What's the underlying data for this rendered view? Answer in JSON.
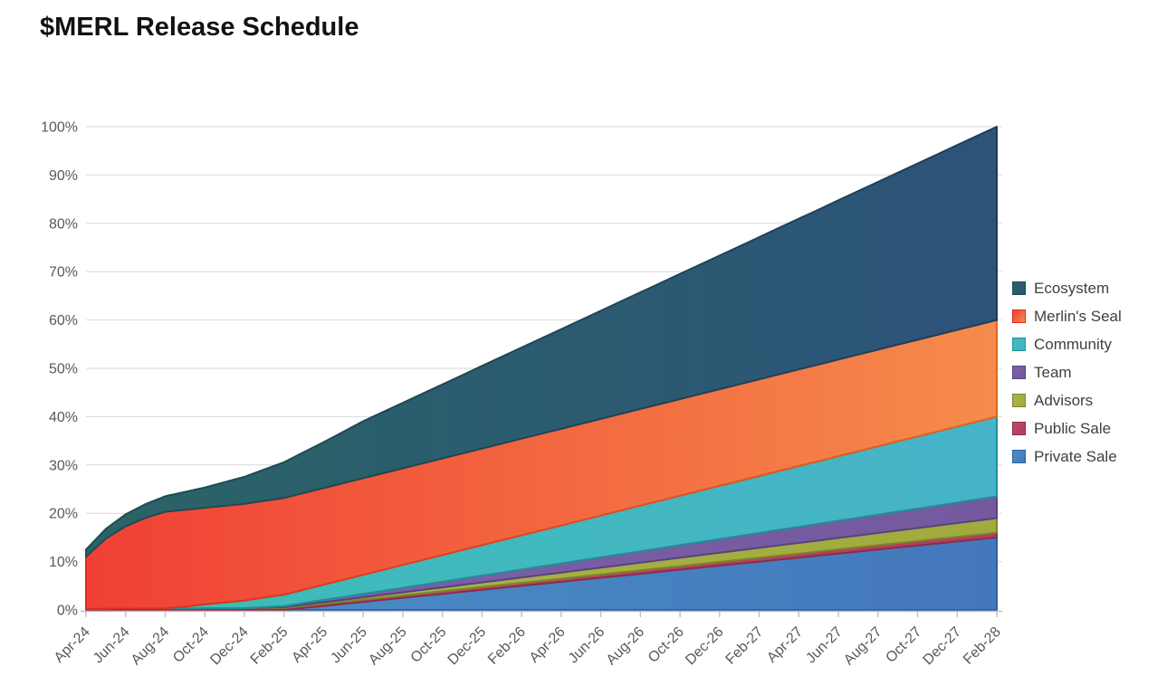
{
  "title": "$MERL Release Schedule",
  "chart_data": {
    "type": "area",
    "stacked": true,
    "unit": "% of total supply unlocked (cumulative)",
    "x_start": "Apr-24",
    "x_end": "Feb-28",
    "x_step_months": 1,
    "x_tick_labels": [
      "Apr-24",
      "Jun-24",
      "Aug-24",
      "Oct-24",
      "Dec-24",
      "Feb-25",
      "Apr-25",
      "Jun-25",
      "Aug-25",
      "Oct-25",
      "Dec-25",
      "Feb-26",
      "Apr-26",
      "Jun-26",
      "Aug-26",
      "Oct-26",
      "Dec-26",
      "Feb-27",
      "Apr-27",
      "Jun-27",
      "Aug-27",
      "Oct-27",
      "Dec-27",
      "Feb-28"
    ],
    "y_ticks": [
      "0%",
      "10%",
      "20%",
      "30%",
      "40%",
      "50%",
      "60%",
      "70%",
      "80%",
      "90%",
      "100%"
    ],
    "ylim": [
      0,
      100
    ],
    "grid": true,
    "grid_color": "#d9d9d9",
    "axis_color": "#bfbfbf",
    "label_color": "#595959",
    "legend_position": "right",
    "legend_order": [
      "Ecosystem",
      "Merlin's Seal",
      "Community",
      "Team",
      "Advisors",
      "Public Sale",
      "Private Sale"
    ],
    "series": [
      {
        "name": "Private Sale",
        "total_allocation_pct": 15,
        "color_left": "#4a90c6",
        "color_right": "#4478bc",
        "stroke_left": "#30609f",
        "stroke_right": "#30609f",
        "values": [
          0,
          0,
          0,
          0,
          0,
          0,
          0,
          0,
          0,
          0,
          0,
          0.42,
          0.83,
          1.25,
          1.67,
          2.08,
          2.5,
          2.92,
          3.33,
          3.75,
          4.17,
          4.58,
          5,
          5.42,
          5.83,
          6.25,
          6.67,
          7.08,
          7.5,
          7.92,
          8.33,
          8.75,
          9.17,
          9.58,
          10,
          10.42,
          10.83,
          11.25,
          11.67,
          12.08,
          12.5,
          12.92,
          13.33,
          13.75,
          14.17,
          14.58,
          15
        ]
      },
      {
        "name": "Public Sale",
        "total_allocation_pct": 1,
        "color_left": "#c2486b",
        "color_right": "#b23d5f",
        "stroke_left": "#8e2c49",
        "stroke_right": "#8e2c49",
        "values": [
          0.25,
          0.27,
          0.28,
          0.3,
          0.32,
          0.33,
          0.35,
          0.36,
          0.38,
          0.4,
          0.41,
          0.43,
          0.45,
          0.46,
          0.48,
          0.49,
          0.51,
          0.53,
          0.54,
          0.56,
          0.58,
          0.59,
          0.61,
          0.63,
          0.64,
          0.66,
          0.67,
          0.69,
          0.71,
          0.72,
          0.74,
          0.76,
          0.77,
          0.79,
          0.8,
          0.82,
          0.84,
          0.85,
          0.87,
          0.89,
          0.9,
          0.92,
          0.93,
          0.95,
          0.97,
          0.98,
          1
        ]
      },
      {
        "name": "Advisors",
        "total_allocation_pct": 3,
        "color_left": "#acb649",
        "color_right": "#a0aa3d",
        "stroke_left": "#7c8629",
        "stroke_right": "#7c8629",
        "values": [
          0,
          0,
          0,
          0,
          0,
          0,
          0,
          0,
          0,
          0.08,
          0.16,
          0.24,
          0.32,
          0.39,
          0.47,
          0.55,
          0.63,
          0.71,
          0.79,
          0.87,
          0.95,
          1.03,
          1.11,
          1.18,
          1.26,
          1.34,
          1.42,
          1.5,
          1.58,
          1.66,
          1.74,
          1.82,
          1.89,
          1.97,
          2.05,
          2.13,
          2.21,
          2.29,
          2.37,
          2.45,
          2.53,
          2.61,
          2.68,
          2.76,
          2.84,
          2.92,
          3
        ]
      },
      {
        "name": "Team",
        "total_allocation_pct": 4.5,
        "color_left": "#7e61a9",
        "color_right": "#74599f",
        "stroke_left": "#564380",
        "stroke_right": "#564380",
        "values": [
          0,
          0,
          0,
          0,
          0,
          0,
          0,
          0,
          0,
          0.12,
          0.24,
          0.36,
          0.47,
          0.59,
          0.71,
          0.83,
          0.95,
          1.07,
          1.18,
          1.3,
          1.42,
          1.54,
          1.66,
          1.78,
          1.89,
          2.01,
          2.13,
          2.25,
          2.37,
          2.49,
          2.61,
          2.72,
          2.84,
          2.96,
          3.08,
          3.2,
          3.32,
          3.43,
          3.55,
          3.67,
          3.79,
          3.91,
          4.03,
          4.14,
          4.26,
          4.38,
          4.5
        ]
      },
      {
        "name": "Community",
        "total_allocation_pct": 16.5,
        "color_left": "#3cbdb5",
        "color_right": "#47b3c9",
        "stroke_left": "#1f9098",
        "stroke_right": "#1f9098",
        "values": [
          0,
          0,
          0,
          0,
          0,
          0.39,
          0.79,
          1.18,
          1.57,
          1.96,
          2.36,
          2.75,
          3.14,
          3.54,
          3.93,
          4.32,
          4.71,
          5.11,
          5.5,
          5.89,
          6.29,
          6.68,
          7.07,
          7.46,
          7.86,
          8.25,
          8.64,
          9.04,
          9.43,
          9.82,
          10.21,
          10.61,
          11,
          11.39,
          11.79,
          12.18,
          12.57,
          12.96,
          13.36,
          13.75,
          14.14,
          14.54,
          14.93,
          15.32,
          15.71,
          16.11,
          16.5
        ]
      },
      {
        "name": "Merlin's Seal",
        "total_allocation_pct": 20,
        "color_left": "#f04035",
        "color_right": "#f58c4b",
        "stroke_left": "#e02b1b",
        "stroke_right": "#db661f",
        "values": [
          10.75,
          14.5,
          17,
          18.75,
          20,
          20,
          20,
          20,
          20,
          20,
          20,
          20,
          20,
          20,
          20,
          20,
          20,
          20,
          20,
          20,
          20,
          20,
          20,
          20,
          20,
          20,
          20,
          20,
          20,
          20,
          20,
          20,
          20,
          20,
          20,
          20,
          20,
          20,
          20,
          20,
          20,
          20,
          20,
          20,
          20,
          20,
          20
        ]
      },
      {
        "name": "Ecosystem",
        "total_allocation_pct": 40,
        "color_left": "#2a6466",
        "color_right": "#2d5379",
        "stroke_left": "#1d4e50",
        "stroke_right": "#1e3d5c",
        "values": [
          1.5,
          2,
          2.5,
          2.85,
          3.2,
          3.7,
          4.2,
          4.9,
          5.6,
          6.5,
          7.4,
          8.45,
          9.5,
          10.65,
          11.8,
          12.68,
          13.56,
          14.44,
          15.33,
          16.21,
          17.09,
          17.97,
          18.85,
          19.73,
          20.61,
          21.49,
          22.38,
          23.26,
          24.14,
          25.02,
          25.9,
          26.78,
          27.66,
          28.54,
          29.43,
          30.31,
          31.19,
          32.07,
          32.95,
          33.83,
          34.71,
          35.59,
          36.48,
          37.36,
          38.24,
          39.12,
          40
        ]
      }
    ]
  }
}
